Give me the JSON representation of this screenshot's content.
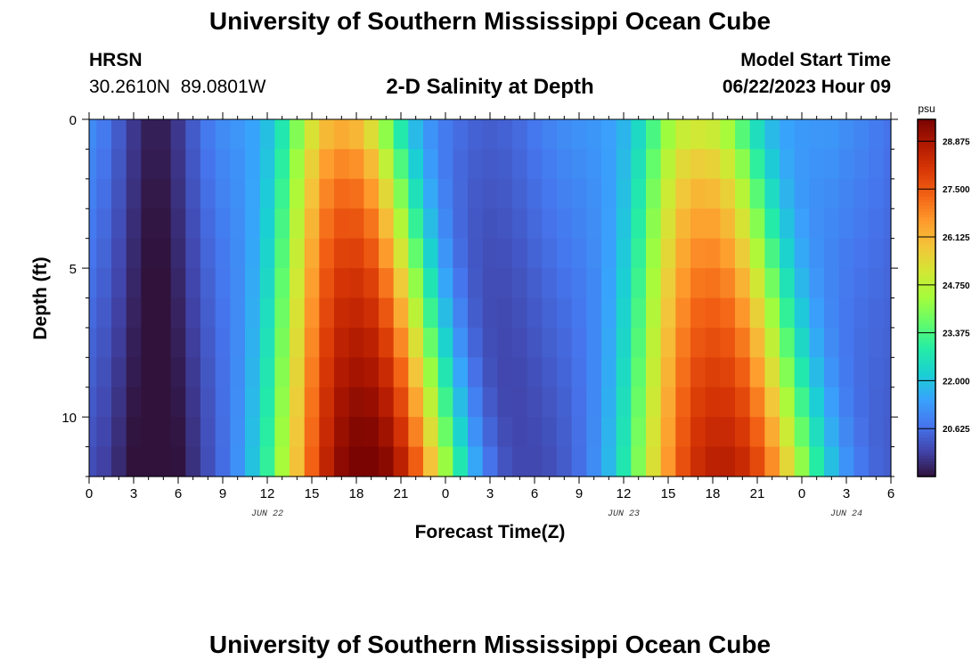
{
  "header": {
    "title": "University of Southern Mississippi Ocean Cube",
    "station": "HRSN",
    "coords": "30.2610N  89.0801W",
    "subtitle": "2-D Salinity at Depth",
    "start_label": "Model Start Time",
    "start_value": "06/22/2023 Hour 09"
  },
  "footer": {
    "title": "University of Southern Mississippi Ocean Cube"
  },
  "colors": {
    "ramp": [
      "#30123b",
      "#4145ab",
      "#4675ed",
      "#39a2fc",
      "#1bcfd4",
      "#24eca6",
      "#61fc6c",
      "#a4fc3b",
      "#d1e834",
      "#f3c63a",
      "#fe9b2d",
      "#f36315",
      "#d93806",
      "#b11901",
      "#7a0402"
    ]
  },
  "chart_data": {
    "type": "heatmap",
    "title": "2-D Salinity at Depth",
    "xlabel": "Forecast Time(Z)",
    "ylabel": "Depth (ft)",
    "x_ticks": [
      "0",
      "3",
      "6",
      "9",
      "12",
      "15",
      "18",
      "21",
      "0",
      "3",
      "6",
      "9",
      "12",
      "15",
      "18",
      "21",
      "0",
      "3",
      "6"
    ],
    "x_range_hours": [
      0,
      54
    ],
    "date_labels": [
      {
        "hour": 12,
        "label": "JUN 22"
      },
      {
        "hour": 36,
        "label": "JUN 23"
      },
      {
        "hour": 51,
        "label": "JUN 24"
      }
    ],
    "y_ticks": [
      "0",
      "5",
      "10"
    ],
    "y_range_ft": [
      0,
      12
    ],
    "colorbar": {
      "unit": "psu",
      "min": 19.25,
      "max": 29.5,
      "labels": [
        "28.875",
        "27.500",
        "26.125",
        "24.750",
        "23.375",
        "22.000",
        "20.625"
      ]
    },
    "depth_levels": 12,
    "hours": 55,
    "salinity_model": {
      "base": 20.3,
      "low_centers_hr": [
        4.5,
        27
      ],
      "low_width_hr": [
        3.0,
        4.0
      ],
      "low_amplitude": [
        1.9,
        0.9
      ],
      "high_centers_hr": [
        17,
        41
      ],
      "high_width_hr": [
        4.6,
        4.6
      ],
      "high_amplitude_surface_bottom": [
        [
          4.5,
          9.2
        ],
        [
          3.3,
          8.2
        ]
      ]
    }
  }
}
